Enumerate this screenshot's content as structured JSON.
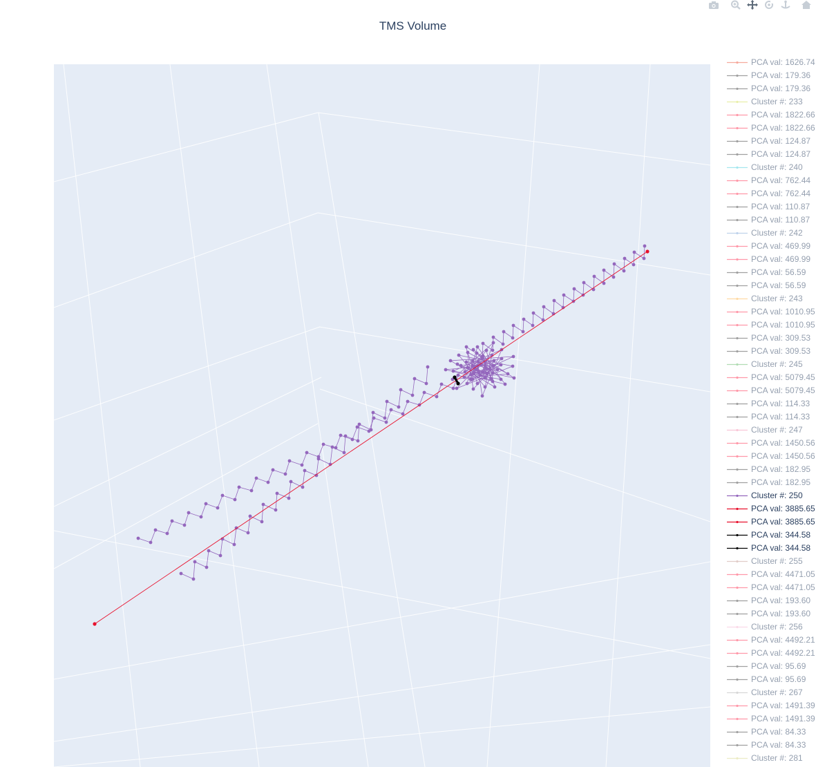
{
  "modebar": {
    "buttons": [
      {
        "name": "camera-icon"
      },
      {
        "name": "zoom-icon"
      },
      {
        "name": "pan-icon"
      },
      {
        "name": "orbit-rotation-icon"
      },
      {
        "name": "turntable-rotation-icon"
      },
      {
        "name": "reset-camera-icon"
      },
      {
        "name": "last-save-camera-icon"
      },
      {
        "name": "plotly-logo-icon"
      }
    ]
  },
  "chart_data": {
    "type": "scatter3d",
    "title": "TMS Volume",
    "grid": true,
    "legend_position": "right",
    "legend_items": [
      {
        "label": "PCA val: 1626.74",
        "color": "#ef553b",
        "active": false
      },
      {
        "label": "PCA val: 179.36",
        "color": "#444444",
        "active": false
      },
      {
        "label": "PCA val: 179.36",
        "color": "#444444",
        "active": false
      },
      {
        "label": "Cluster #: 233",
        "color": "#d4e157",
        "active": false
      },
      {
        "label": "PCA val: 1822.66",
        "color": "#ff3355",
        "active": false
      },
      {
        "label": "PCA val: 1822.66",
        "color": "#ff3355",
        "active": false
      },
      {
        "label": "PCA val: 124.87",
        "color": "#444444",
        "active": false
      },
      {
        "label": "PCA val: 124.87",
        "color": "#444444",
        "active": false
      },
      {
        "label": "Cluster #: 240",
        "color": "#4dd0e1",
        "active": false
      },
      {
        "label": "PCA val: 762.44",
        "color": "#ff3355",
        "active": false
      },
      {
        "label": "PCA val: 762.44",
        "color": "#ff3355",
        "active": false
      },
      {
        "label": "PCA val: 110.87",
        "color": "#444444",
        "active": false
      },
      {
        "label": "PCA val: 110.87",
        "color": "#444444",
        "active": false
      },
      {
        "label": "Cluster #: 242",
        "color": "#7fa7d8",
        "active": false
      },
      {
        "label": "PCA val: 469.99",
        "color": "#ff3355",
        "active": false
      },
      {
        "label": "PCA val: 469.99",
        "color": "#ff3355",
        "active": false
      },
      {
        "label": "PCA val: 56.59",
        "color": "#444444",
        "active": false
      },
      {
        "label": "PCA val: 56.59",
        "color": "#444444",
        "active": false
      },
      {
        "label": "Cluster #: 243",
        "color": "#ffb74d",
        "active": false
      },
      {
        "label": "PCA val: 1010.95",
        "color": "#ff3355",
        "active": false
      },
      {
        "label": "PCA val: 1010.95",
        "color": "#ff3355",
        "active": false
      },
      {
        "label": "PCA val: 309.53",
        "color": "#444444",
        "active": false
      },
      {
        "label": "PCA val: 309.53",
        "color": "#444444",
        "active": false
      },
      {
        "label": "Cluster #: 245",
        "color": "#66bb6a",
        "active": false
      },
      {
        "label": "PCA val: 5079.45",
        "color": "#ff3355",
        "active": false
      },
      {
        "label": "PCA val: 5079.45",
        "color": "#ff3355",
        "active": false
      },
      {
        "label": "PCA val: 114.33",
        "color": "#444444",
        "active": false
      },
      {
        "label": "PCA val: 114.33",
        "color": "#444444",
        "active": false
      },
      {
        "label": "Cluster #: 247",
        "color": "#f48fb1",
        "active": false
      },
      {
        "label": "PCA val: 1450.56",
        "color": "#ff3355",
        "active": false
      },
      {
        "label": "PCA val: 1450.56",
        "color": "#ff3355",
        "active": false
      },
      {
        "label": "PCA val: 182.95",
        "color": "#444444",
        "active": false
      },
      {
        "label": "PCA val: 182.95",
        "color": "#444444",
        "active": false
      },
      {
        "label": "Cluster #: 250",
        "color": "#9467bd",
        "active": true
      },
      {
        "label": "PCA val: 3885.65",
        "color": "#e8112d",
        "active": true
      },
      {
        "label": "PCA val: 3885.65",
        "color": "#e8112d",
        "active": true
      },
      {
        "label": "PCA val: 344.58",
        "color": "#000000",
        "active": true
      },
      {
        "label": "PCA val: 344.58",
        "color": "#000000",
        "active": true
      },
      {
        "label": "Cluster #: 255",
        "color": "#c49c94",
        "active": false
      },
      {
        "label": "PCA val: 4471.05",
        "color": "#ff3355",
        "active": false
      },
      {
        "label": "PCA val: 4471.05",
        "color": "#ff3355",
        "active": false
      },
      {
        "label": "PCA val: 193.60",
        "color": "#444444",
        "active": false
      },
      {
        "label": "PCA val: 193.60",
        "color": "#444444",
        "active": false
      },
      {
        "label": "Cluster #: 256",
        "color": "#f7b6d2",
        "active": false
      },
      {
        "label": "PCA val: 4492.21",
        "color": "#ff3355",
        "active": false
      },
      {
        "label": "PCA val: 4492.21",
        "color": "#ff3355",
        "active": false
      },
      {
        "label": "PCA val: 95.69",
        "color": "#444444",
        "active": false
      },
      {
        "label": "PCA val: 95.69",
        "color": "#444444",
        "active": false
      },
      {
        "label": "Cluster #: 267",
        "color": "#b0b0b0",
        "active": false
      },
      {
        "label": "PCA val: 1491.39",
        "color": "#ff3355",
        "active": false
      },
      {
        "label": "PCA val: 1491.39",
        "color": "#ff3355",
        "active": false
      },
      {
        "label": "PCA val: 84.33",
        "color": "#444444",
        "active": false
      },
      {
        "label": "PCA val: 84.33",
        "color": "#444444",
        "active": false
      },
      {
        "label": "Cluster #: 281",
        "color": "#dbdb8d",
        "active": false
      }
    ],
    "series": [
      {
        "name": "Cluster #: 250",
        "color": "#9467bd"
      },
      {
        "name": "PCA val: 3885.65",
        "color": "#e8112d"
      },
      {
        "name": "PCA val: 344.58",
        "color": "#000000"
      }
    ]
  }
}
